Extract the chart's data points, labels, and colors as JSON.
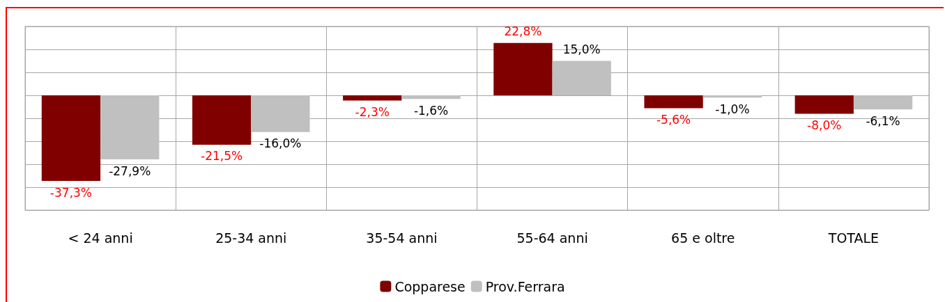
{
  "chart_data": {
    "type": "bar",
    "categories": [
      "< 24 anni",
      "25-34 anni",
      "35-54 anni",
      "55-64 anni",
      "65 e oltre",
      "TOTALE"
    ],
    "series": [
      {
        "name": "Copparese",
        "color": "#800000",
        "values": [
          -37.3,
          -21.5,
          -2.3,
          22.8,
          -5.6,
          -8.0
        ],
        "value_labels": [
          "-37,3%",
          "-21,5%",
          "-2,3%",
          "22,8%",
          "-5,6%",
          "-8,0%"
        ]
      },
      {
        "name": "Prov.Ferrara",
        "color": "#c0c0c0",
        "values": [
          -27.9,
          -16.0,
          -1.6,
          15.0,
          -1.0,
          -6.1
        ],
        "value_labels": [
          "-27,9%",
          "-16,0%",
          "-1,6%",
          "15,0%",
          "-1,0%",
          "-6,1%"
        ]
      }
    ],
    "ylim": [
      -50,
      30
    ],
    "yticks": [
      {
        "value": -50,
        "label": null
      },
      {
        "value": -40,
        "label": null
      },
      {
        "value": -30,
        "label": null
      },
      {
        "value": -20,
        "label": null
      },
      {
        "value": -10,
        "label": null
      },
      {
        "value": 0,
        "label": null
      },
      {
        "value": 10,
        "label": null
      },
      {
        "value": 20,
        "label": null
      },
      {
        "value": 30,
        "label": null
      }
    ],
    "tick_labels": "x",
    "grid": true,
    "legend": "bottom"
  }
}
